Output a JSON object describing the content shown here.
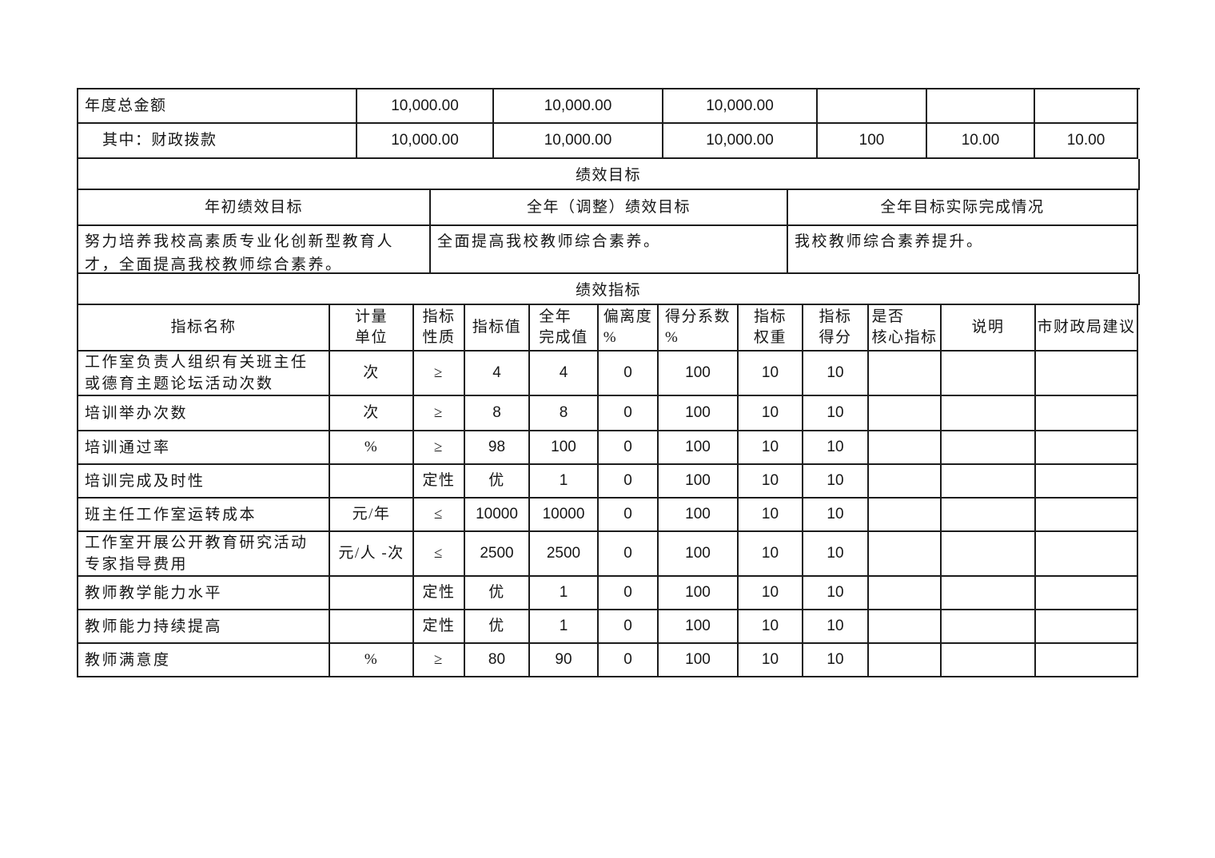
{
  "summary": {
    "rows": [
      {
        "label": "年度总金额",
        "values": [
          "10,000.00",
          "10,000.00",
          "10,000.00",
          "",
          "",
          ""
        ]
      },
      {
        "label": "其中：财政拨款",
        "values": [
          "10,000.00",
          "10,000.00",
          "10,000.00",
          "100",
          "10.00",
          "10.00"
        ]
      }
    ]
  },
  "goals": {
    "section_title": "绩效目标",
    "columns": [
      "年初绩效目标",
      "全年（调整）绩效目标",
      "全年目标实际完成情况"
    ],
    "contents": [
      "努力培养我校高素质专业化创新型教育人\n才，全面提高我校教师综合素养。",
      "全面提高我校教师综合素养。",
      "我校教师综合素养提升。"
    ]
  },
  "indicators": {
    "section_title": "绩效指标",
    "headers": {
      "name": "指标名称",
      "unit": "计量\n单位",
      "nature": "指标\n性质",
      "target": "指标值",
      "annual": "全年\n完成值",
      "deviation": "偏离度\n%",
      "coefficient": "得分系数\n%",
      "weight": "指标\n权重",
      "score": "指标\n得分",
      "core": "是否\n核心指标",
      "note": "说明",
      "suggestion": "市财政局建议"
    },
    "rows": [
      {
        "name": "工作室负责人组织有关班主任\n或德育主题论坛活动次数",
        "unit": "次",
        "nature": "≥",
        "target": "4",
        "annual": "4",
        "deviation": "0",
        "coefficient": "100",
        "weight": "10",
        "score": "10",
        "core": "",
        "note": "",
        "suggestion": ""
      },
      {
        "name": "培训举办次数",
        "unit": "次",
        "nature": "≥",
        "target": "8",
        "annual": "8",
        "deviation": "0",
        "coefficient": "100",
        "weight": "10",
        "score": "10",
        "core": "",
        "note": "",
        "suggestion": ""
      },
      {
        "name": "培训通过率",
        "unit": "%",
        "nature": "≥",
        "target": "98",
        "annual": "100",
        "deviation": "0",
        "coefficient": "100",
        "weight": "10",
        "score": "10",
        "core": "",
        "note": "",
        "suggestion": ""
      },
      {
        "name": "培训完成及时性",
        "unit": "",
        "nature": "定性",
        "target": "优",
        "annual": "1",
        "deviation": "0",
        "coefficient": "100",
        "weight": "10",
        "score": "10",
        "core": "",
        "note": "",
        "suggestion": ""
      },
      {
        "name": "班主任工作室运转成本",
        "unit": "元/年",
        "nature": "≤",
        "target": "10000",
        "annual": "10000",
        "deviation": "0",
        "coefficient": "100",
        "weight": "10",
        "score": "10",
        "core": "",
        "note": "",
        "suggestion": ""
      },
      {
        "name": "工作室开展公开教育研究活动\n专家指导费用",
        "unit": "元/人 -次",
        "nature": "≤",
        "target": "2500",
        "annual": "2500",
        "deviation": "0",
        "coefficient": "100",
        "weight": "10",
        "score": "10",
        "core": "",
        "note": "",
        "suggestion": ""
      },
      {
        "name": "教师教学能力水平",
        "unit": "",
        "nature": "定性",
        "target": "优",
        "annual": "1",
        "deviation": "0",
        "coefficient": "100",
        "weight": "10",
        "score": "10",
        "core": "",
        "note": "",
        "suggestion": ""
      },
      {
        "name": "教师能力持续提高",
        "unit": "",
        "nature": "定性",
        "target": "优",
        "annual": "1",
        "deviation": "0",
        "coefficient": "100",
        "weight": "10",
        "score": "10",
        "core": "",
        "note": "",
        "suggestion": ""
      },
      {
        "name": "教师满意度",
        "unit": "%",
        "nature": "≥",
        "target": "80",
        "annual": "90",
        "deviation": "0",
        "coefficient": "100",
        "weight": "10",
        "score": "10",
        "core": "",
        "note": "",
        "suggestion": ""
      }
    ]
  }
}
